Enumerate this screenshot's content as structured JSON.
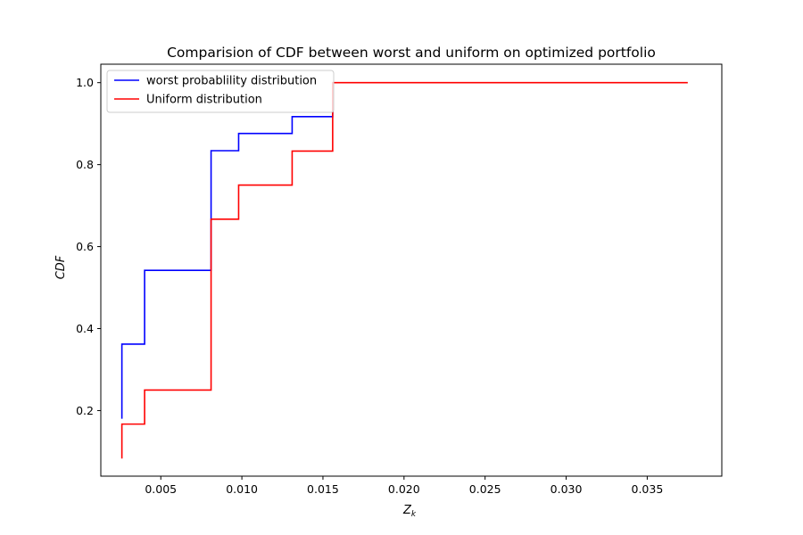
{
  "chart_data": {
    "type": "line",
    "title": "Comparision of  CDF between worst and uniform on optimized portfolio",
    "xlabel": "Z",
    "xlabel_subscript": "k",
    "ylabel": "CDF",
    "xlim": [
      0.0013,
      0.0396
    ],
    "ylim": [
      0.04,
      1.045
    ],
    "xticks": [
      0.005,
      0.01,
      0.015,
      0.02,
      0.025,
      0.03,
      0.035
    ],
    "xtick_labels": [
      "0.005",
      "0.010",
      "0.015",
      "0.020",
      "0.025",
      "0.030",
      "0.035"
    ],
    "yticks": [
      0.2,
      0.4,
      0.6,
      0.8,
      1.0
    ],
    "ytick_labels": [
      "0.2",
      "0.4",
      "0.6",
      "0.8",
      "1.0"
    ],
    "grid": false,
    "legend_position": "top-left",
    "series": [
      {
        "name": "worst probablility distribution",
        "color": "#0000ff",
        "step": "post",
        "x": [
          0.0026,
          0.0026,
          0.004,
          0.0081,
          0.0098,
          0.0131,
          0.0156,
          0.0156
        ],
        "y": [
          0.18,
          0.362,
          0.542,
          0.834,
          0.876,
          0.917,
          0.958,
          0.958
        ]
      },
      {
        "name": "Uniform distribution",
        "color": "#ff0000",
        "step": "post",
        "x": [
          0.0026,
          0.0026,
          0.004,
          0.0081,
          0.0098,
          0.0131,
          0.0156,
          0.0375
        ],
        "y": [
          0.083,
          0.167,
          0.25,
          0.667,
          0.75,
          0.833,
          1.0,
          1.0
        ]
      }
    ]
  }
}
